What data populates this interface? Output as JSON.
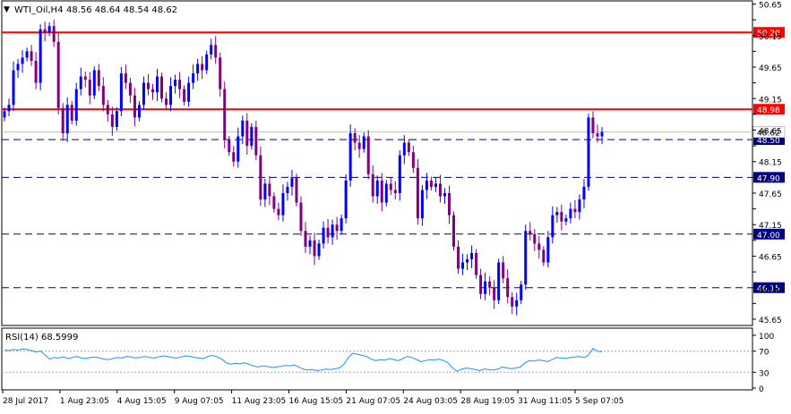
{
  "header": {
    "symbol_label": "WTI_Oil,H4",
    "ohlc_text": "48.56 48.64 48.54 48.62"
  },
  "colors": {
    "bull": "#0000ff",
    "bear": "#800080",
    "resistance": "#ff0000",
    "support": "#000080",
    "rsi_line": "#1e90ff",
    "text": "#000000",
    "current_price_line": "#c0c0c0"
  },
  "chart_data": [
    {
      "type": "candlestick",
      "symbol": "WTI_Oil",
      "timeframe": "H4",
      "ylim": [
        45.55,
        50.7
      ],
      "y_ticks": [
        50.65,
        50.4,
        50.15,
        49.9,
        49.65,
        49.4,
        49.15,
        48.9,
        48.65,
        48.4,
        48.15,
        47.9,
        47.65,
        47.4,
        47.15,
        46.9,
        46.65,
        46.4,
        46.15,
        45.9,
        45.65
      ],
      "y_tick_labels": [
        "50.65",
        "50.15",
        "49.65",
        "49.15",
        "48.65",
        "48.15",
        "47.65",
        "47.15",
        "46.65",
        "46.15",
        "45.65"
      ],
      "x_labels": [
        "28 Jul 2017",
        "1 Aug 23:05",
        "4 Aug 15:05",
        "9 Aug 07:05",
        "11 Aug 23:05",
        "16 Aug 15:05",
        "21 Aug 07:05",
        "24 Aug 03:05",
        "28 Aug 19:05",
        "31 Aug 11:05",
        "5 Sep 07:05"
      ],
      "levels": [
        {
          "value": 50.2,
          "label": "50.20",
          "style": "solid",
          "kind": "resistance"
        },
        {
          "value": 48.98,
          "label": "48.98",
          "style": "solid",
          "kind": "resistance"
        },
        {
          "value": 48.5,
          "label": "48.50",
          "style": "dashed",
          "kind": "support"
        },
        {
          "value": 47.9,
          "label": "47.90",
          "style": "dashed",
          "kind": "support"
        },
        {
          "value": 47.0,
          "label": "47.00",
          "style": "dashed",
          "kind": "support"
        },
        {
          "value": 46.15,
          "label": "46.15",
          "style": "dashed",
          "kind": "support"
        }
      ],
      "current_price": {
        "value": 48.62,
        "label": "48.62"
      },
      "closes": [
        48.95,
        49.05,
        49.6,
        49.7,
        49.8,
        49.9,
        49.75,
        49.4,
        50.25,
        50.2,
        50.3,
        50.05,
        49.0,
        48.6,
        49.05,
        48.8,
        49.3,
        49.5,
        49.45,
        49.2,
        49.6,
        49.35,
        49.05,
        48.9,
        48.7,
        48.95,
        49.55,
        49.4,
        49.2,
        48.85,
        49.05,
        49.4,
        49.3,
        49.25,
        49.5,
        49.15,
        49.05,
        49.35,
        49.45,
        49.3,
        49.1,
        49.4,
        49.55,
        49.7,
        49.6,
        49.85,
        50.0,
        49.8,
        49.3,
        48.5,
        48.3,
        48.15,
        48.55,
        48.8,
        48.4,
        48.7,
        48.25,
        47.55,
        47.8,
        47.6,
        47.4,
        47.3,
        47.65,
        47.75,
        47.9,
        47.5,
        47.05,
        46.8,
        46.9,
        46.65,
        46.85,
        47.1,
        46.95,
        47.15,
        47.05,
        47.25,
        47.85,
        48.6,
        48.45,
        48.35,
        48.55,
        47.95,
        47.6,
        47.85,
        47.5,
        47.8,
        47.7,
        47.65,
        48.25,
        48.45,
        48.3,
        48.05,
        47.25,
        47.7,
        47.85,
        47.75,
        47.8,
        47.6,
        47.65,
        47.3,
        46.8,
        46.45,
        46.55,
        46.6,
        46.7,
        46.35,
        46.05,
        46.25,
        46.15,
        45.95,
        46.55,
        46.3,
        46.0,
        45.85,
        45.95,
        46.2,
        47.05,
        47.0,
        46.85,
        46.75,
        46.55,
        46.95,
        47.3,
        47.35,
        47.2,
        47.25,
        47.4,
        47.35,
        47.55,
        47.75,
        48.85,
        48.6,
        48.55,
        48.62
      ]
    },
    {
      "type": "line",
      "title": "RSI(14) 68.5999",
      "ylim": [
        0,
        100
      ],
      "y_tick_labels": [
        "100",
        "70",
        "30",
        "0"
      ],
      "reference_levels": [
        70,
        30
      ],
      "values": [
        72,
        71,
        73,
        72,
        74,
        73,
        71,
        68,
        70,
        62,
        55,
        58,
        57,
        59,
        56,
        58,
        60,
        57,
        56,
        58,
        59,
        57,
        55,
        54,
        56,
        58,
        57,
        60,
        59,
        57,
        58,
        60,
        58,
        57,
        59,
        61,
        60,
        58,
        57,
        59,
        61,
        60,
        58,
        57,
        56,
        60,
        62,
        59,
        55,
        48,
        45,
        47,
        46,
        48,
        45,
        42,
        40,
        42,
        41,
        39,
        40,
        41,
        43,
        42,
        44,
        40,
        36,
        34,
        35,
        33,
        34,
        36,
        35,
        37,
        38,
        45,
        58,
        66,
        64,
        62,
        60,
        55,
        52,
        54,
        53,
        56,
        54,
        52,
        56,
        60,
        58,
        54,
        50,
        52,
        54,
        53,
        55,
        52,
        48,
        38,
        32,
        36,
        38,
        37,
        35,
        33,
        36,
        35,
        34,
        36,
        40,
        38,
        37,
        38,
        40,
        48,
        52,
        51,
        53,
        52,
        50,
        54,
        58,
        57,
        56,
        58,
        59,
        60,
        58,
        62,
        75,
        70,
        68.5999
      ]
    }
  ]
}
